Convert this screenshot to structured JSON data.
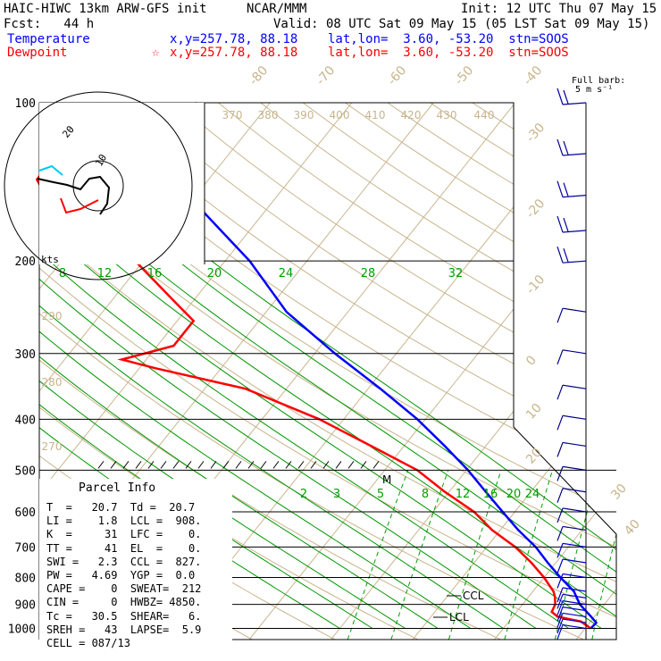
{
  "header": {
    "model": "HAIC-HIWC 13km ARW-GFS init",
    "org": "NCAR/MMM",
    "init": "Init: 12 UTC Thu 07 May 15",
    "fcst": "Fcst:   44 h",
    "valid": "Valid: 08 UTC Sat 09 May 15 (05 LST Sat 09 May 15)",
    "temp_label": "Temperature",
    "temp_loc": "x,y=257.78, 88.18    lat,lon=  3.60, -53.20  stn=SOOS",
    "dew_label": "Dewpoint",
    "dew_loc": "x,y=257.78, 88.18    lat,lon=  3.60, -53.20  stn=SOOS",
    "dew_star": "☆",
    "barb_note_1": "Full barb:",
    "barb_note_2": "5 m s⁻¹"
  },
  "colors": {
    "temperature": "#0000ff",
    "dewpoint": "#ff0000",
    "isotherm": "#c8b48c",
    "mixing_ratio": "#00a000",
    "adiabat": "#009600",
    "text_dark": "#000000",
    "hodo_cyan": "#00c8ff"
  },
  "chart_data": {
    "type": "line",
    "title": "Skew-T log-P sounding",
    "y_axis": {
      "scale": "log",
      "label_values": [
        "100",
        "200",
        "300",
        "400",
        "500",
        "600",
        "700",
        "800",
        "900",
        "1000"
      ],
      "values": [
        100,
        200,
        300,
        400,
        500,
        600,
        700,
        800,
        900,
        1000
      ]
    },
    "isotherm_labels": [
      "-80",
      "-70",
      "-60",
      "-50",
      "-40",
      "-30",
      "-20",
      "-10",
      "0",
      "10",
      "20",
      "30",
      "40"
    ],
    "isotherm_values": [
      -80,
      -70,
      -60,
      -50,
      -40,
      -30,
      -20,
      -10,
      0,
      10,
      20,
      30,
      40
    ],
    "theta_labels": [
      "370",
      "380",
      "390",
      "400",
      "410",
      "420",
      "430",
      "440",
      "290",
      "280",
      "270"
    ],
    "mixing_ratio_labels_upper": [
      "8",
      "12",
      "16",
      "20",
      "24",
      "28",
      "32"
    ],
    "mixing_ratio_labels_lower": [
      "2",
      "3",
      "5",
      "8",
      "12",
      "16",
      "20",
      "24"
    ],
    "series": [
      {
        "name": "Temperature",
        "points": [
          [
            1000,
            20.7
          ],
          [
            975,
            20.8
          ],
          [
            950,
            19.6
          ],
          [
            900,
            17.0
          ],
          [
            850,
            15.0
          ],
          [
            800,
            12.0
          ],
          [
            750,
            9.0
          ],
          [
            700,
            6.0
          ],
          [
            650,
            2.2
          ],
          [
            600,
            -1.5
          ],
          [
            550,
            -5.5
          ],
          [
            500,
            -9.8
          ],
          [
            450,
            -15.0
          ],
          [
            400,
            -21.0
          ],
          [
            350,
            -28.5
          ],
          [
            300,
            -37.5
          ],
          [
            250,
            -47.5
          ],
          [
            200,
            -57.0
          ],
          [
            175,
            -63.5
          ],
          [
            150,
            -71.0
          ],
          [
            125,
            -78.5
          ],
          [
            110,
            -80.5
          ],
          [
            100,
            -79.0
          ]
        ]
      },
      {
        "name": "Dewpoint",
        "points": [
          [
            1000,
            20.7
          ],
          [
            970,
            18.8
          ],
          [
            950,
            15.5
          ],
          [
            930,
            14.3
          ],
          [
            900,
            14.0
          ],
          [
            870,
            13.2
          ],
          [
            850,
            12.5
          ],
          [
            800,
            10.0
          ],
          [
            750,
            7.0
          ],
          [
            700,
            3.5
          ],
          [
            650,
            -1.0
          ],
          [
            600,
            -5.0
          ],
          [
            550,
            -10.5
          ],
          [
            500,
            -16.0
          ],
          [
            450,
            -24.0
          ],
          [
            400,
            -33.0
          ],
          [
            350,
            -45.0
          ],
          [
            320,
            -58.0
          ],
          [
            308,
            -63.0
          ],
          [
            290,
            -58.0
          ],
          [
            260,
            -58.0
          ],
          [
            240,
            -62.0
          ],
          [
            200,
            -71.0
          ],
          [
            180,
            -77.0
          ],
          [
            160,
            -86.0
          ],
          [
            140,
            -91.0
          ],
          [
            120,
            -91.0
          ],
          [
            100,
            -91.0
          ]
        ]
      }
    ],
    "annotations": [
      "M",
      "CCL",
      "LCL"
    ],
    "wind_barbs_p": [
      1000,
      975,
      950,
      925,
      900,
      875,
      850,
      800,
      750,
      700,
      650,
      600,
      550,
      500,
      450,
      400,
      350,
      300,
      250,
      200,
      175,
      150,
      125,
      100
    ],
    "wind_barbs_kts_note": "kts",
    "hodograph": {
      "ring_labels": [
        "20",
        "10"
      ]
    }
  },
  "parcel_info": {
    "title": "Parcel Info",
    "rows": [
      "T  =   20.7  Td =  20.7",
      "LI =    1.8  LCL =  908.",
      "K  =     31  LFC =    0.",
      "TT =     41  EL  =    0.",
      "SWI =   2.3  CCL =  827.",
      "PW =   4.69  YGP =  0.0",
      "CAPE =    0  SWEAT=  212",
      "CIN =     0  HWBZ= 4850.",
      "Tc =   30.5  SHEAR=   6.",
      "SREH =   43  LAPSE=  5.9",
      "CELL = 087/13"
    ]
  }
}
